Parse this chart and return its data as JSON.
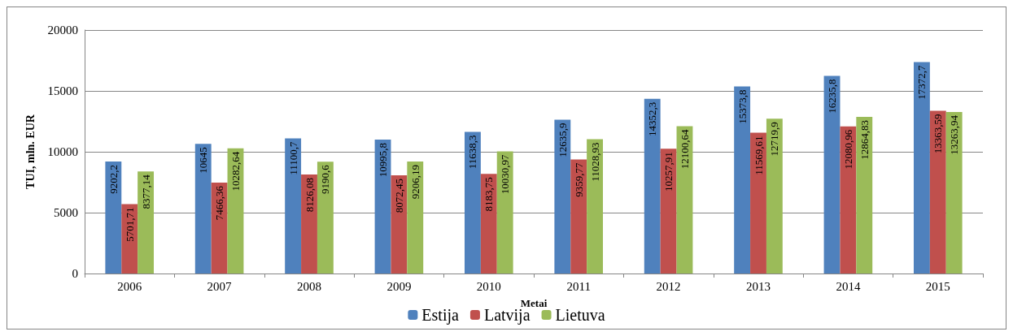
{
  "chart_data": {
    "type": "bar",
    "xlabel": "Metai",
    "ylabel": "TUI, mln. EUR",
    "categories": [
      "2006",
      "2007",
      "2008",
      "2009",
      "2010",
      "2011",
      "2012",
      "2013",
      "2014",
      "2015"
    ],
    "series": [
      {
        "name": "Estija",
        "color": "#4f81bd",
        "values": [
          9202.2,
          10645,
          11100.7,
          10995.8,
          11638.3,
          12635.9,
          14352.3,
          15373.8,
          16235.8,
          17372.7
        ],
        "value_labels": [
          "9202,2",
          "10645",
          "11100,7",
          "10995,8",
          "11638,3",
          "12635,9",
          "14352,3",
          "15373,8",
          "16235,8",
          "17372,7"
        ]
      },
      {
        "name": "Latvija",
        "color": "#c0504d",
        "values": [
          5701.71,
          7466.36,
          8126.08,
          8072.45,
          8183.75,
          9359.77,
          10257.91,
          11569.61,
          12080.96,
          13363.59
        ],
        "value_labels": [
          "5701,71",
          "7466,36",
          "8126,08",
          "8072,45",
          "8183,75",
          "9359,77",
          "10257,91",
          "11569,61",
          "12080,96",
          "13363,59"
        ]
      },
      {
        "name": "Lietuva",
        "color": "#9bbb59",
        "values": [
          8377.14,
          10282.64,
          9190.6,
          9206.19,
          10030.97,
          11028.93,
          12100.64,
          12719.9,
          12864.83,
          13263.94
        ],
        "value_labels": [
          "8377,14",
          "10282,64",
          "9190,6",
          "9206,19",
          "10030,97",
          "11028,93",
          "12100,64",
          "12719,9",
          "12864,83",
          "13263,94"
        ]
      }
    ],
    "ylim": [
      0,
      20000
    ],
    "yticks": [
      0,
      5000,
      10000,
      15000,
      20000
    ],
    "grid": "y",
    "legend": "bottom"
  }
}
